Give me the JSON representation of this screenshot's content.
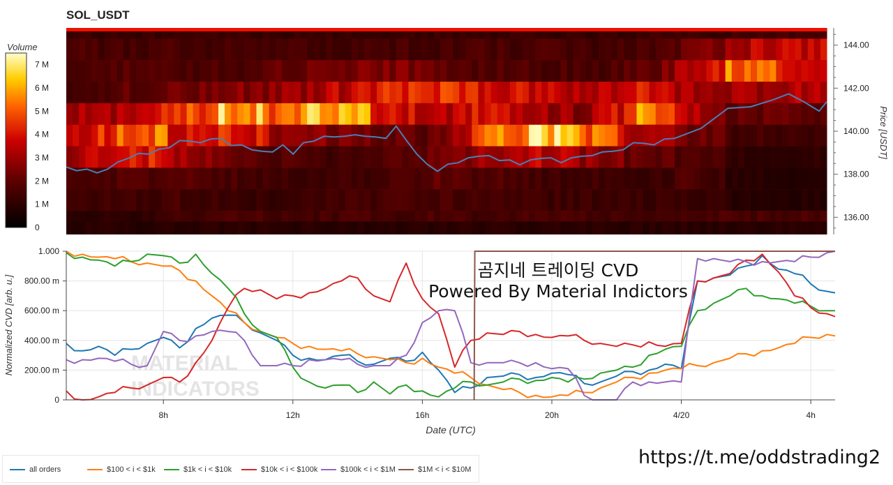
{
  "header": {
    "title": "SOL_USDT"
  },
  "annotation": {
    "line1": "곰지네 트레이딩 CVD",
    "line2": "Powered By Material Indictors"
  },
  "watermark": {
    "line1": "MATERIAL",
    "line2": "INDICATORS"
  },
  "footer": {
    "link": "https://t.me/oddstrading2"
  },
  "colors": {
    "heat_low": "#000000",
    "heat_mid": "#cc0000",
    "heat_high": "#ffff99",
    "price_line": "#4a7fb5"
  },
  "chart_data": [
    {
      "type": "heatmap",
      "title": "SOL_USDT",
      "ylabel": "Price [USDT]",
      "ylim": [
        135.2,
        144.8
      ],
      "yticks": [
        "144.00",
        "142.00",
        "140.00",
        "138.00",
        "136.00"
      ],
      "colorbar": {
        "label": "Volume",
        "ticks": [
          "7 M",
          "6 M",
          "5 M",
          "4 M",
          "3 M",
          "2 M",
          "1 M",
          "0"
        ],
        "range": [
          0,
          7.5
        ]
      },
      "price_bands": [
        144.5,
        143.8,
        142.8,
        141.8,
        140.8,
        139.8,
        138.8,
        137.8,
        136.8,
        135.8,
        135.3
      ],
      "segments": [
        [
          1.2,
          1.6,
          1.8,
          1.5,
          3.0,
          3.5,
          3.2,
          1.5,
          1.4,
          1.0,
          0.9
        ],
        [
          1.3,
          1.5,
          1.9,
          2.0,
          3.6,
          5.8,
          4.6,
          1.7,
          1.4,
          0.9,
          0.8
        ],
        [
          1.2,
          1.6,
          1.7,
          2.2,
          4.3,
          4.1,
          3.0,
          1.9,
          1.5,
          1.5,
          0.9
        ],
        [
          1.3,
          1.5,
          1.6,
          2.6,
          6.2,
          4.6,
          2.3,
          1.6,
          1.3,
          1.6,
          0.9
        ],
        [
          1.2,
          1.6,
          2.0,
          2.9,
          5.4,
          3.0,
          1.8,
          1.5,
          1.2,
          1.5,
          0.9
        ],
        [
          1.3,
          1.5,
          2.4,
          3.3,
          7.0,
          2.6,
          1.5,
          1.3,
          1.4,
          1.5,
          0.9
        ],
        [
          1.2,
          1.6,
          2.6,
          4.0,
          4.2,
          2.2,
          1.8,
          1.6,
          1.5,
          1.6,
          0.9
        ],
        [
          1.3,
          1.5,
          2.1,
          4.6,
          3.4,
          1.9,
          2.1,
          2.0,
          1.6,
          1.6,
          0.9
        ],
        [
          1.2,
          1.6,
          1.8,
          4.1,
          3.8,
          5.4,
          3.2,
          1.8,
          1.5,
          1.5,
          0.9
        ],
        [
          1.3,
          1.6,
          1.7,
          3.6,
          3.1,
          6.4,
          3.6,
          1.5,
          1.4,
          1.6,
          0.9
        ],
        [
          1.2,
          1.5,
          1.6,
          3.1,
          2.6,
          5.6,
          3.0,
          1.4,
          1.3,
          1.5,
          0.9
        ],
        [
          1.3,
          1.6,
          1.9,
          4.1,
          5.6,
          3.4,
          2.1,
          1.2,
          1.2,
          1.5,
          0.9
        ],
        [
          1.4,
          1.9,
          3.2,
          3.4,
          3.5,
          2.4,
          1.8,
          1.7,
          1.4,
          1.6,
          0.9
        ],
        [
          1.5,
          3.3,
          5.4,
          3.0,
          2.2,
          1.5,
          1.1,
          0.9,
          0.9,
          1.6,
          0.9
        ],
        [
          1.5,
          3.6,
          4.1,
          3.2,
          2.0,
          1.4,
          1.0,
          0.8,
          0.8,
          1.6,
          0.9
        ]
      ],
      "price_series": {
        "name": "price",
        "x": [
          0.0,
          0.5,
          1.0,
          1.5,
          2.0,
          2.5,
          3.0,
          3.5,
          4.0,
          4.5,
          5.0,
          5.5,
          6.0,
          6.5,
          7.0,
          7.5,
          8.0,
          8.5,
          9.0,
          9.5,
          10.0,
          10.5,
          11.0,
          11.5,
          12.0,
          12.5,
          13.0,
          13.5,
          14.0,
          14.5,
          15.0,
          15.5,
          16.0,
          16.5,
          17.0,
          17.5,
          18.0,
          18.5,
          19.0,
          19.5,
          20.0,
          20.5,
          21.0,
          21.5,
          22.0,
          22.5,
          23.0,
          23.5,
          24.0,
          24.5,
          25.0,
          25.5,
          26.0,
          26.5,
          27.0,
          27.5,
          28.0,
          28.5,
          29.0,
          29.5
        ],
        "y": [
          138.4,
          138.1,
          138.3,
          138.0,
          138.3,
          138.5,
          138.8,
          138.9,
          139.0,
          139.1,
          139.3,
          139.5,
          139.6,
          139.4,
          139.7,
          139.6,
          139.4,
          139.3,
          139.2,
          139.0,
          139.1,
          139.3,
          139.0,
          139.4,
          139.6,
          139.7,
          139.8,
          139.7,
          139.9,
          139.7,
          139.8,
          139.6,
          140.3,
          139.5,
          139.0,
          138.4,
          138.2,
          138.4,
          138.6,
          138.7,
          138.9,
          138.8,
          138.7,
          138.6,
          138.5,
          138.6,
          138.8,
          138.7,
          138.6,
          138.7,
          138.9,
          138.8,
          139.1,
          139.0,
          139.2,
          139.4,
          139.5,
          139.3,
          139.7,
          139.6
        ]
      }
    },
    {
      "type": "line",
      "xlabel": "Date (UTC)",
      "ylabel": "Normalized CVD [arb. u.]",
      "xlim": [
        5,
        28.75
      ],
      "ylim": [
        0,
        1
      ],
      "xticks": [
        8,
        12,
        16,
        20,
        24,
        28
      ],
      "xtick_labels": [
        "8h",
        "12h",
        "16h",
        "20h",
        "4/20",
        "4h"
      ],
      "yticks": [
        0,
        0.2,
        0.4,
        0.6,
        0.8,
        1.0
      ],
      "ytick_labels": [
        "0",
        "200.00 m",
        "400.00 m",
        "600.00 m",
        "800.00 m",
        "1.000"
      ],
      "legend": "bottom-left",
      "series": [
        {
          "name": "all orders",
          "color": "#1f77b4",
          "x": [
            5,
            5.5,
            6,
            6.5,
            7,
            7.5,
            8,
            8.5,
            9,
            9.5,
            10,
            10.5,
            11,
            11.5,
            12,
            12.5,
            13,
            13.5,
            14,
            14.5,
            15,
            15.5,
            16,
            16.5,
            17,
            17.5,
            18,
            18.5,
            19,
            19.5,
            20,
            20.5,
            21,
            21.5,
            22,
            22.5,
            23,
            23.5,
            24,
            24.5,
            25,
            25.5,
            26,
            26.5,
            27,
            27.5,
            28,
            28.5,
            28.75
          ],
          "y": [
            0.38,
            0.33,
            0.36,
            0.3,
            0.34,
            0.38,
            0.42,
            0.35,
            0.48,
            0.55,
            0.57,
            0.52,
            0.45,
            0.4,
            0.3,
            0.28,
            0.27,
            0.3,
            0.26,
            0.24,
            0.28,
            0.26,
            0.32,
            0.2,
            0.05,
            0.08,
            0.15,
            0.16,
            0.17,
            0.15,
            0.18,
            0.17,
            0.11,
            0.12,
            0.16,
            0.19,
            0.2,
            0.24,
            0.21,
            0.8,
            0.82,
            0.84,
            0.9,
            0.97,
            0.88,
            0.85,
            0.78,
            0.73,
            0.72
          ]
        },
        {
          "name": "$100 < i < $1k",
          "color": "#ff7f0e",
          "x": [
            5,
            5.5,
            6,
            6.5,
            7,
            7.5,
            8,
            8.5,
            9,
            9.5,
            10,
            10.5,
            11,
            11.5,
            12,
            12.5,
            13,
            13.5,
            14,
            14.5,
            15,
            15.5,
            16,
            16.5,
            17,
            17.5,
            18,
            18.5,
            19,
            19.5,
            20,
            20.5,
            21,
            21.5,
            22,
            22.5,
            23,
            23.5,
            24,
            24.5,
            25,
            25.5,
            26,
            26.5,
            27,
            27.5,
            28,
            28.5,
            28.75
          ],
          "y": [
            1.0,
            0.98,
            0.96,
            0.95,
            0.93,
            0.92,
            0.9,
            0.87,
            0.8,
            0.7,
            0.6,
            0.52,
            0.46,
            0.42,
            0.38,
            0.36,
            0.34,
            0.33,
            0.31,
            0.29,
            0.27,
            0.25,
            0.28,
            0.22,
            0.18,
            0.15,
            0.1,
            0.07,
            0.05,
            0.03,
            0.02,
            0.03,
            0.05,
            0.08,
            0.12,
            0.15,
            0.18,
            0.2,
            0.21,
            0.23,
            0.25,
            0.28,
            0.31,
            0.33,
            0.35,
            0.38,
            0.42,
            0.44,
            0.43
          ]
        },
        {
          "name": "$1k < i < $10k",
          "color": "#2ca02c",
          "x": [
            5,
            5.5,
            6,
            6.5,
            7,
            7.5,
            8,
            8.5,
            9,
            9.5,
            10,
            10.5,
            11,
            11.5,
            12,
            12.5,
            13,
            13.5,
            14,
            14.5,
            15,
            15.5,
            16,
            16.5,
            17,
            17.5,
            18,
            18.5,
            19,
            19.5,
            20,
            20.5,
            21,
            21.5,
            22,
            22.5,
            23,
            23.5,
            24,
            24.5,
            25,
            25.5,
            26,
            26.5,
            27,
            27.5,
            28,
            28.5,
            28.75
          ],
          "y": [
            0.99,
            0.96,
            0.94,
            0.9,
            0.93,
            0.98,
            0.97,
            0.92,
            0.98,
            0.85,
            0.75,
            0.58,
            0.46,
            0.42,
            0.22,
            0.12,
            0.08,
            0.1,
            0.05,
            0.12,
            0.04,
            0.1,
            0.06,
            0.02,
            0.08,
            0.12,
            0.1,
            0.12,
            0.14,
            0.13,
            0.15,
            0.12,
            0.14,
            0.18,
            0.2,
            0.22,
            0.3,
            0.34,
            0.36,
            0.6,
            0.65,
            0.7,
            0.75,
            0.7,
            0.68,
            0.65,
            0.63,
            0.6,
            0.6
          ]
        },
        {
          "name": "$10k < i < $100k",
          "color": "#d62728",
          "x": [
            5,
            5.5,
            6,
            6.5,
            7,
            7.5,
            8,
            8.5,
            9,
            9.5,
            10,
            10.5,
            11,
            11.5,
            12,
            12.5,
            13,
            13.5,
            14,
            14.5,
            15,
            15.5,
            16,
            16.5,
            17,
            17.5,
            18,
            18.5,
            19,
            19.5,
            20,
            20.5,
            21,
            21.5,
            22,
            22.5,
            23,
            23.5,
            24,
            24.5,
            25,
            25.5,
            26,
            26.5,
            27,
            27.5,
            28,
            28.5,
            28.75
          ],
          "y": [
            0.06,
            0.0,
            0.02,
            0.05,
            0.08,
            0.1,
            0.15,
            0.12,
            0.25,
            0.4,
            0.62,
            0.75,
            0.74,
            0.68,
            0.7,
            0.72,
            0.75,
            0.8,
            0.82,
            0.7,
            0.66,
            0.92,
            0.68,
            0.58,
            0.22,
            0.4,
            0.45,
            0.44,
            0.46,
            0.44,
            0.42,
            0.43,
            0.4,
            0.38,
            0.36,
            0.37,
            0.39,
            0.36,
            0.38,
            0.8,
            0.82,
            0.85,
            0.94,
            0.98,
            0.86,
            0.7,
            0.62,
            0.58,
            0.56
          ]
        },
        {
          "name": "$100k < i < $1M",
          "color": "#9467bd",
          "x": [
            5,
            5.5,
            6,
            6.5,
            7,
            7.5,
            8,
            8.5,
            9,
            9.5,
            10,
            10.5,
            11,
            11.5,
            12,
            12.5,
            13,
            13.5,
            14,
            14.5,
            15,
            15.5,
            16,
            16.5,
            17,
            17.5,
            18,
            18.5,
            19,
            19.5,
            20,
            20.5,
            21,
            21.5,
            22,
            22.5,
            23,
            23.5,
            24,
            24.5,
            25,
            25.5,
            26,
            26.5,
            27,
            27.5,
            28,
            28.5,
            28.75
          ],
          "y": [
            0.27,
            0.27,
            0.28,
            0.26,
            0.24,
            0.23,
            0.46,
            0.4,
            0.43,
            0.46,
            0.46,
            0.4,
            0.23,
            0.23,
            0.23,
            0.27,
            0.27,
            0.27,
            0.24,
            0.23,
            0.23,
            0.3,
            0.52,
            0.6,
            0.6,
            0.25,
            0.25,
            0.25,
            0.25,
            0.25,
            0.21,
            0.21,
            0.03,
            0.0,
            0.0,
            0.12,
            0.12,
            0.12,
            0.12,
            0.95,
            0.95,
            0.93,
            0.93,
            0.93,
            0.93,
            0.93,
            0.96,
            0.99,
            1.0
          ]
        },
        {
          "name": "$1M < i < $10M",
          "color": "#8c564b",
          "x": [
            17.6,
            17.62,
            17.8,
            28.75
          ],
          "y": [
            0.0,
            1.0,
            1.0,
            1.0
          ]
        }
      ]
    }
  ]
}
